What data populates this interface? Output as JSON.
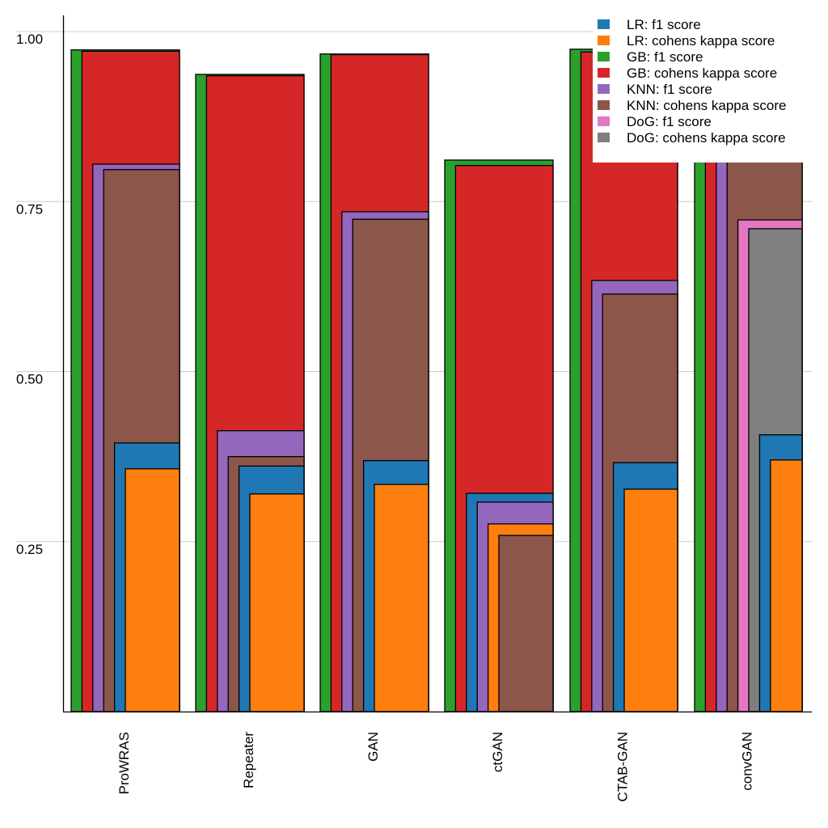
{
  "chart_data": {
    "type": "bar",
    "title": "",
    "xlabel": "",
    "ylabel": "",
    "ylim": [
      0,
      1.0
    ],
    "yticks": [
      0.25,
      0.5,
      0.75,
      1.0
    ],
    "ytick_labels": [
      "0.25",
      "0.50",
      "0.75",
      "1.00"
    ],
    "grid": "horizontal",
    "legend_position": "top-right",
    "bar_layout": "overlapping-nested (each series drawn in order of decreasing height within a category)",
    "categories": [
      "ProWRAS",
      "Repeater",
      "GAN",
      "ctGAN",
      "CTAB-GAN",
      "convGAN"
    ],
    "series": [
      {
        "name": "LR: f1 score",
        "color": "#1f77b4",
        "values": [
          0.395,
          0.361,
          0.369,
          0.321,
          0.366,
          0.407
        ]
      },
      {
        "name": "LR: cohens kappa score",
        "color": "#ff7f0e",
        "values": [
          0.357,
          0.32,
          0.334,
          0.276,
          0.327,
          0.37
        ]
      },
      {
        "name": "GB: f1 score",
        "color": "#2ca02c",
        "values": [
          0.973,
          0.937,
          0.967,
          0.811,
          0.974,
          0.97
        ]
      },
      {
        "name": "GB: cohens kappa score",
        "color": "#d62728",
        "values": [
          0.971,
          0.935,
          0.966,
          0.803,
          0.97,
          0.96
        ]
      },
      {
        "name": "KNN: f1 score",
        "color": "#9467bd",
        "values": [
          0.805,
          0.413,
          0.735,
          0.308,
          0.634,
          0.86
        ]
      },
      {
        "name": "KNN: cohens kappa score",
        "color": "#8c564b",
        "values": [
          0.797,
          0.375,
          0.724,
          0.259,
          0.614,
          0.84
        ]
      },
      {
        "name": "DoG: f1 score",
        "color": "#e377c2",
        "values": [
          null,
          null,
          null,
          null,
          null,
          0.723
        ]
      },
      {
        "name": "DoG: cohens kappa score",
        "color": "#7f7f7f",
        "values": [
          null,
          null,
          null,
          null,
          null,
          0.71
        ]
      }
    ]
  }
}
